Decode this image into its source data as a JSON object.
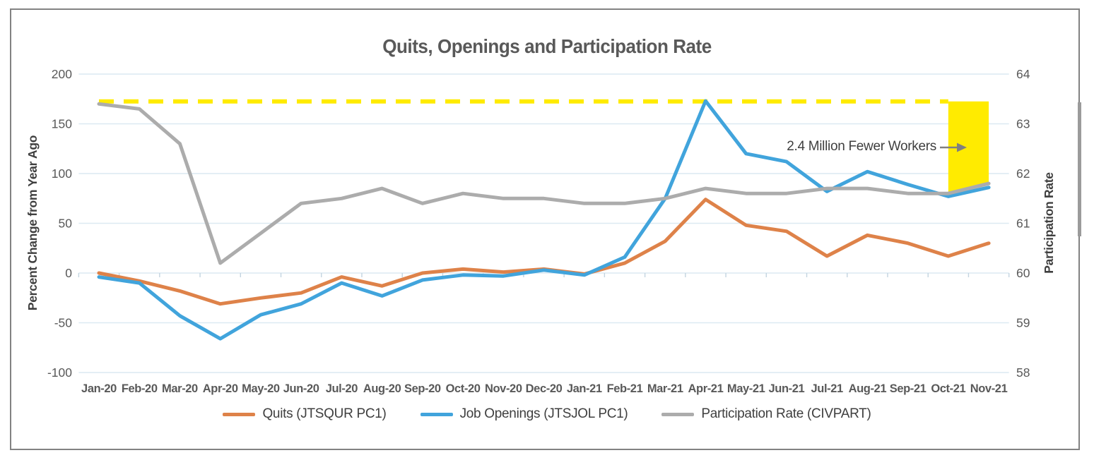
{
  "chart_data": {
    "type": "line",
    "title": "Quits, Openings and Participation Rate",
    "categories": [
      "Jan-20",
      "Feb-20",
      "Mar-20",
      "Apr-20",
      "May-20",
      "Jun-20",
      "Jul-20",
      "Aug-20",
      "Sep-20",
      "Oct-20",
      "Nov-20",
      "Dec-20",
      "Jan-21",
      "Feb-21",
      "Mar-21",
      "Apr-21",
      "May-21",
      "Jun-21",
      "Jul-21",
      "Aug-21",
      "Sep-21",
      "Oct-21",
      "Nov-21"
    ],
    "series": [
      {
        "name": "Quits (JTSQUR PC1)",
        "axis": "left",
        "color": "#DE8249",
        "values": [
          0,
          -8,
          -18,
          -31,
          -25,
          -20,
          -4,
          -13,
          0,
          4,
          1,
          4,
          -1,
          10,
          32,
          74,
          48,
          42,
          17,
          38,
          30,
          17,
          30
        ]
      },
      {
        "name": "Job Openings (JTSJOL PC1)",
        "axis": "left",
        "color": "#41A4DC",
        "values": [
          -4,
          -10,
          -43,
          -66,
          -42,
          -31,
          -10,
          -23,
          -7,
          -2,
          -3,
          3,
          -2,
          16,
          75,
          173,
          120,
          112,
          82,
          102,
          89,
          77,
          86
        ]
      },
      {
        "name": "Participation Rate (CIVPART)",
        "axis": "right",
        "color": "#ACACAC",
        "values": [
          63.4,
          63.3,
          62.6,
          60.2,
          60.8,
          61.4,
          61.5,
          61.7,
          61.4,
          61.6,
          61.5,
          61.5,
          61.4,
          61.4,
          61.5,
          61.7,
          61.6,
          61.6,
          61.7,
          61.7,
          61.6,
          61.6,
          61.8
        ]
      }
    ],
    "left_axis": {
      "label": "Percent Change from Year Ago",
      "ticks": [
        200,
        150,
        100,
        50,
        0,
        -50,
        -100
      ],
      "range": [
        -100,
        200
      ]
    },
    "right_axis": {
      "label": "Participation Rate",
      "ticks": [
        64,
        63,
        62,
        61,
        60,
        59,
        58
      ],
      "range": [
        58,
        64
      ]
    },
    "reference_line": {
      "axis": "right",
      "value": 63.45,
      "style": "dashed",
      "color": "#FFEB00"
    },
    "highlight_band": {
      "color": "#FFEB00",
      "from_category": "Oct-21",
      "to_category": "Nov-21",
      "top_value": 63.45,
      "bottom_values": [
        61.6,
        61.8
      ]
    },
    "annotation": {
      "text": "2.4 Million Fewer Workers",
      "arrow_color": "#808080"
    },
    "legend_position": "bottom",
    "grid": true,
    "gridline_color": "#DCE9F2",
    "tick_label_color": "#595959"
  },
  "window": {
    "has_scrollbar_thumb": true
  }
}
